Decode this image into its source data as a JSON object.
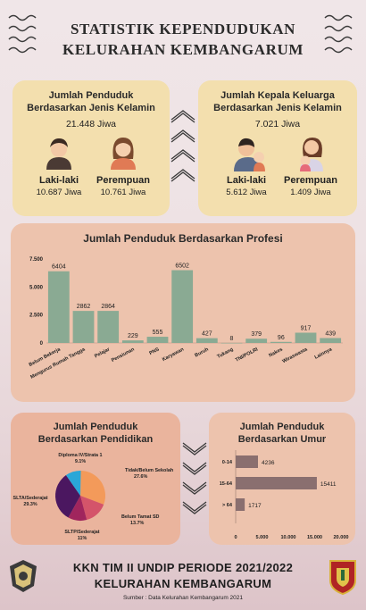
{
  "header": {
    "line1": "STATISTIK KEPENDUDUKAN",
    "line2": "KELURAHAN KEMBANGARUM"
  },
  "gender_card": {
    "title1": "Jumlah Penduduk",
    "title2": "Berdasarkan Jenis Kelamin",
    "total": "21.448 Jiwa",
    "male_label": "Laki-laki",
    "male_value": "10.687 Jiwa",
    "female_label": "Perempuan",
    "female_value": "10.761 Jiwa"
  },
  "kk_card": {
    "title1": "Jumlah Kepala Keluarga",
    "title2": "Berdasarkan Jenis Kelamin",
    "total": "7.021 Jiwa",
    "male_label": "Laki-laki",
    "male_value": "5.612 Jiwa",
    "female_label": "Perempuan",
    "female_value": "1.409 Jiwa"
  },
  "profesi_card": {
    "title": "Jumlah Penduduk Berdasarkan Profesi"
  },
  "pendidikan_card": {
    "title1": "Jumlah Penduduk",
    "title2": "Berdasarkan Pendidikan"
  },
  "umur_card": {
    "title1": "Jumlah Penduduk",
    "title2": "Berdasarkan Umur"
  },
  "footer": {
    "line1": "KKN TIM II UNDIP PERIODE 2021/2022",
    "line2": "KELURAHAN KEMBANGARUM",
    "source": "Sumber : Data Kelurahan Kembangarum 2021"
  },
  "colors": {
    "bar": "#8aaa93",
    "yellow_card": "#f3dfae",
    "peach_card": "#edc3ad",
    "umur_bar": "#8a6f6f"
  },
  "chart_data": [
    {
      "type": "bar",
      "title": "Jumlah Penduduk Berdasarkan Profesi",
      "categories": [
        "Belum Bekerja",
        "Mengurus Rumah Tangga",
        "Pelajar",
        "Pensiunan",
        "PNS",
        "Karyawan",
        "Buruh",
        "Tukang",
        "TNI/POLRI",
        "Nakes",
        "Wiraswasta",
        "Lainnya"
      ],
      "values": [
        6404,
        2862,
        2864,
        229,
        555,
        6502,
        427,
        8,
        379,
        96,
        917,
        439
      ],
      "value_labels": [
        "6404",
        "2862",
        "2864",
        "229",
        "555",
        "6502",
        "427",
        "8",
        "379",
        "96",
        "917",
        "439"
      ],
      "yticks": [
        "0",
        "2.500",
        "5.000",
        "7.500"
      ],
      "ylim": [
        0,
        7500
      ]
    },
    {
      "type": "pie",
      "title": "Jumlah Penduduk Berdasarkan Pendidikan",
      "slices": [
        {
          "label": "Tidak/Belum Sekolah",
          "pct": "27.6%",
          "value": 27.6,
          "color": "#f39a5a"
        },
        {
          "label": "Belum Tamat SD",
          "pct": "13.7%",
          "value": 13.7,
          "color": "#d4546a"
        },
        {
          "label": "SLTP/Sederajat",
          "pct": "11%",
          "value": 11,
          "color": "#a0255d"
        },
        {
          "label": "SLTA/Sederajat",
          "pct": "29.3%",
          "value": 29.3,
          "color": "#4b1760"
        },
        {
          "label": "Diploma IV/Strata 1",
          "pct": "9.1%",
          "value": 9.1,
          "color": "#2aa7d8"
        }
      ]
    },
    {
      "type": "bar",
      "orientation": "horizontal",
      "title": "Jumlah Penduduk Berdasarkan Umur",
      "categories": [
        "0-14",
        "15-64",
        "> 64"
      ],
      "values": [
        4236,
        15411,
        1717
      ],
      "value_labels": [
        "4236",
        "15411",
        "1717"
      ],
      "xticks": [
        "0",
        "5.000",
        "10.000",
        "15.000",
        "20.000"
      ],
      "xlim": [
        0,
        20000
      ]
    }
  ]
}
